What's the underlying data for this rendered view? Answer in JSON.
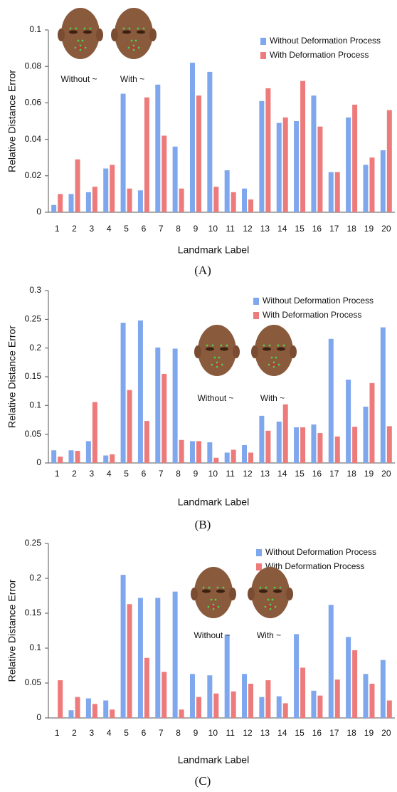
{
  "chart_data": [
    {
      "type": "bar",
      "caption": "(A)",
      "x_label": "Landmark Label",
      "y_label": "Relative Distance Error",
      "categories": [
        "1",
        "2",
        "3",
        "4",
        "5",
        "6",
        "7",
        "8",
        "9",
        "10",
        "11",
        "12",
        "13",
        "14",
        "15",
        "16",
        "17",
        "18",
        "19",
        "20"
      ],
      "series": [
        {
          "name": "Without Deformation Process",
          "color": "#7fa7ee",
          "values": [
            0.004,
            0.01,
            0.011,
            0.024,
            0.065,
            0.012,
            0.07,
            0.036,
            0.082,
            0.077,
            0.023,
            0.013,
            0.061,
            0.049,
            0.05,
            0.064,
            0.022,
            0.052,
            0.026,
            0.034
          ]
        },
        {
          "name": "With Deformation Process",
          "color": "#ee7b7b",
          "values": [
            0.01,
            0.029,
            0.014,
            0.026,
            0.013,
            0.063,
            0.042,
            0.013,
            0.064,
            0.014,
            0.011,
            0.007,
            0.068,
            0.052,
            0.072,
            0.047,
            0.022,
            0.059,
            0.03,
            0.056
          ]
        }
      ],
      "ylim": [
        0,
        0.1
      ],
      "yticks": [
        0,
        0.02,
        0.04,
        0.06,
        0.08,
        0.1
      ],
      "annotations": [
        "Without ~",
        "With ~"
      ]
    },
    {
      "type": "bar",
      "caption": "(B)",
      "x_label": "Landmark Label",
      "y_label": "Relative Distance Error",
      "categories": [
        "1",
        "2",
        "3",
        "4",
        "5",
        "6",
        "7",
        "8",
        "9",
        "10",
        "11",
        "12",
        "13",
        "14",
        "15",
        "16",
        "17",
        "18",
        "19",
        "20"
      ],
      "series": [
        {
          "name": "Without Deformation Process",
          "color": "#7fa7ee",
          "values": [
            0.022,
            0.022,
            0.038,
            0.013,
            0.244,
            0.248,
            0.201,
            0.199,
            0.038,
            0.036,
            0.018,
            0.031,
            0.082,
            0.072,
            0.062,
            0.067,
            0.216,
            0.145,
            0.098,
            0.236
          ]
        },
        {
          "name": "With Deformation Process",
          "color": "#ee7b7b",
          "values": [
            0.011,
            0.021,
            0.106,
            0.015,
            0.127,
            0.073,
            0.155,
            0.04,
            0.038,
            0.009,
            0.023,
            0.018,
            0.056,
            0.102,
            0.062,
            0.052,
            0.046,
            0.063,
            0.139,
            0.064
          ]
        }
      ],
      "ylim": [
        0,
        0.3
      ],
      "yticks": [
        0,
        0.05,
        0.1,
        0.15,
        0.2,
        0.25,
        0.3
      ],
      "annotations": [
        "Without ~",
        "With ~"
      ]
    },
    {
      "type": "bar",
      "caption": "(C)",
      "x_label": "Landmark Label",
      "y_label": "Relative Distance Error",
      "categories": [
        "1",
        "2",
        "3",
        "4",
        "5",
        "6",
        "7",
        "8",
        "9",
        "10",
        "11",
        "12",
        "13",
        "14",
        "15",
        "16",
        "17",
        "18",
        "19",
        "20"
      ],
      "series": [
        {
          "name": "Without Deformation Process",
          "color": "#7fa7ee",
          "values": [
            0,
            0.011,
            0.028,
            0.025,
            0.205,
            0.172,
            0.172,
            0.181,
            0.063,
            0.061,
            0.119,
            0.063,
            0.03,
            0.031,
            0.12,
            0.039,
            0.162,
            0.116,
            0.063,
            0.083
          ]
        },
        {
          "name": "With Deformation Process",
          "color": "#ee7b7b",
          "values": [
            0.054,
            0.03,
            0.02,
            0.012,
            0.163,
            0.086,
            0.066,
            0.012,
            0.03,
            0.035,
            0.038,
            0.049,
            0.054,
            0.021,
            0.072,
            0.032,
            0.055,
            0.097,
            0.049,
            0.025
          ]
        }
      ],
      "ylim": [
        0,
        0.25
      ],
      "yticks": [
        0,
        0.05,
        0.1,
        0.15,
        0.2,
        0.25
      ],
      "annotations": [
        "Without ~",
        "With ~"
      ]
    }
  ]
}
